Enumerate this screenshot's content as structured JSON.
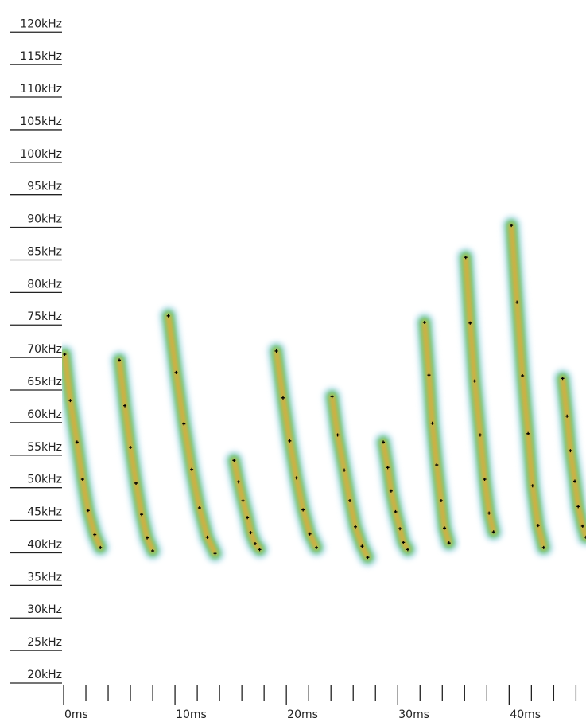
{
  "chart_data": {
    "type": "spectrogram",
    "xlim": [
      0,
      46.9
    ],
    "ylim": [
      20,
      123.7
    ],
    "xticks": [
      {
        "value": 0,
        "label": "0ms"
      },
      {
        "value": 10,
        "label": "10ms"
      },
      {
        "value": 20,
        "label": "20ms"
      },
      {
        "value": 30,
        "label": "30ms"
      },
      {
        "value": 40,
        "label": "40ms"
      }
    ],
    "xminor_ticks": [
      2,
      4,
      6,
      8,
      12,
      14,
      16,
      18,
      22,
      24,
      26,
      28,
      32,
      34,
      36,
      38,
      42,
      44,
      46
    ],
    "yticks": [
      {
        "value": 20,
        "label": "20kHz"
      },
      {
        "value": 25,
        "label": "25kHz"
      },
      {
        "value": 30,
        "label": "30kHz"
      },
      {
        "value": 35,
        "label": "35kHz"
      },
      {
        "value": 40,
        "label": "40kHz"
      },
      {
        "value": 45,
        "label": "45kHz"
      },
      {
        "value": 50,
        "label": "50kHz"
      },
      {
        "value": 55,
        "label": "55kHz"
      },
      {
        "value": 60,
        "label": "60kHz"
      },
      {
        "value": 65,
        "label": "65kHz"
      },
      {
        "value": 70,
        "label": "70kHz"
      },
      {
        "value": 75,
        "label": "75kHz"
      },
      {
        "value": 80,
        "label": "80kHz"
      },
      {
        "value": 85,
        "label": "85kHz"
      },
      {
        "value": 90,
        "label": "90kHz"
      },
      {
        "value": 95,
        "label": "95kHz"
      },
      {
        "value": 100,
        "label": "100kHz"
      },
      {
        "value": 105,
        "label": "105kHz"
      },
      {
        "value": 110,
        "label": "110kHz"
      },
      {
        "value": 115,
        "label": "115kHz"
      },
      {
        "value": 120,
        "label": "120kHz"
      }
    ],
    "heat_colors": [
      "#bfe3ef",
      "#3fb46a",
      "#e9e43c",
      "#e8482a"
    ],
    "marker_color": "#000000",
    "series": [
      {
        "x": [
          0.1,
          0.6,
          1.2,
          1.7,
          2.2,
          2.8,
          3.3
        ],
        "values": [
          70.5,
          63.4,
          57.0,
          51.3,
          46.5,
          42.8,
          40.8
        ]
      },
      {
        "x": [
          5.0,
          5.5,
          6.0,
          6.5,
          7.0,
          7.5,
          8.0
        ],
        "values": [
          69.6,
          62.6,
          56.2,
          50.7,
          45.9,
          42.3,
          40.3
        ]
      },
      {
        "x": [
          9.4,
          10.1,
          10.8,
          11.5,
          12.2,
          12.9,
          13.6
        ],
        "values": [
          76.4,
          67.7,
          59.8,
          52.8,
          46.9,
          42.4,
          39.9
        ]
      },
      {
        "x": [
          15.3,
          15.7,
          16.1,
          16.5,
          16.8,
          17.2,
          17.6
        ],
        "values": [
          54.2,
          50.9,
          48.0,
          45.4,
          43.1,
          41.4,
          40.5
        ]
      },
      {
        "x": [
          19.1,
          19.7,
          20.3,
          20.9,
          21.5,
          22.1,
          22.7
        ],
        "values": [
          71.0,
          63.8,
          57.2,
          51.5,
          46.6,
          42.9,
          40.8
        ]
      },
      {
        "x": [
          24.1,
          24.6,
          25.2,
          25.7,
          26.2,
          26.8,
          27.3
        ],
        "values": [
          64.0,
          58.1,
          52.7,
          48.0,
          44.0,
          41.0,
          39.3
        ]
      },
      {
        "x": [
          28.7,
          29.1,
          29.4,
          29.8,
          30.2,
          30.5,
          30.9
        ],
        "values": [
          57.0,
          53.1,
          49.5,
          46.3,
          43.7,
          41.6,
          40.5
        ]
      },
      {
        "x": [
          32.4,
          32.8,
          33.1,
          33.5,
          33.9,
          34.2,
          34.6
        ],
        "values": [
          75.4,
          67.3,
          59.9,
          53.5,
          48.0,
          43.8,
          41.5
        ]
      },
      {
        "x": [
          36.1,
          36.5,
          36.9,
          37.4,
          37.8,
          38.2,
          38.6
        ],
        "values": [
          85.4,
          75.3,
          66.4,
          58.1,
          51.3,
          46.1,
          43.2
        ]
      },
      {
        "x": [
          40.2,
          40.7,
          41.2,
          41.7,
          42.1,
          42.6,
          43.1
        ],
        "values": [
          90.3,
          78.5,
          67.2,
          58.3,
          50.3,
          44.2,
          40.8
        ]
      },
      {
        "x": [
          44.8,
          45.2,
          45.5,
          45.9,
          46.2,
          46.6,
          46.9
        ],
        "values": [
          66.8,
          61.0,
          55.7,
          51.0,
          47.1,
          44.1,
          42.4
        ]
      }
    ]
  }
}
